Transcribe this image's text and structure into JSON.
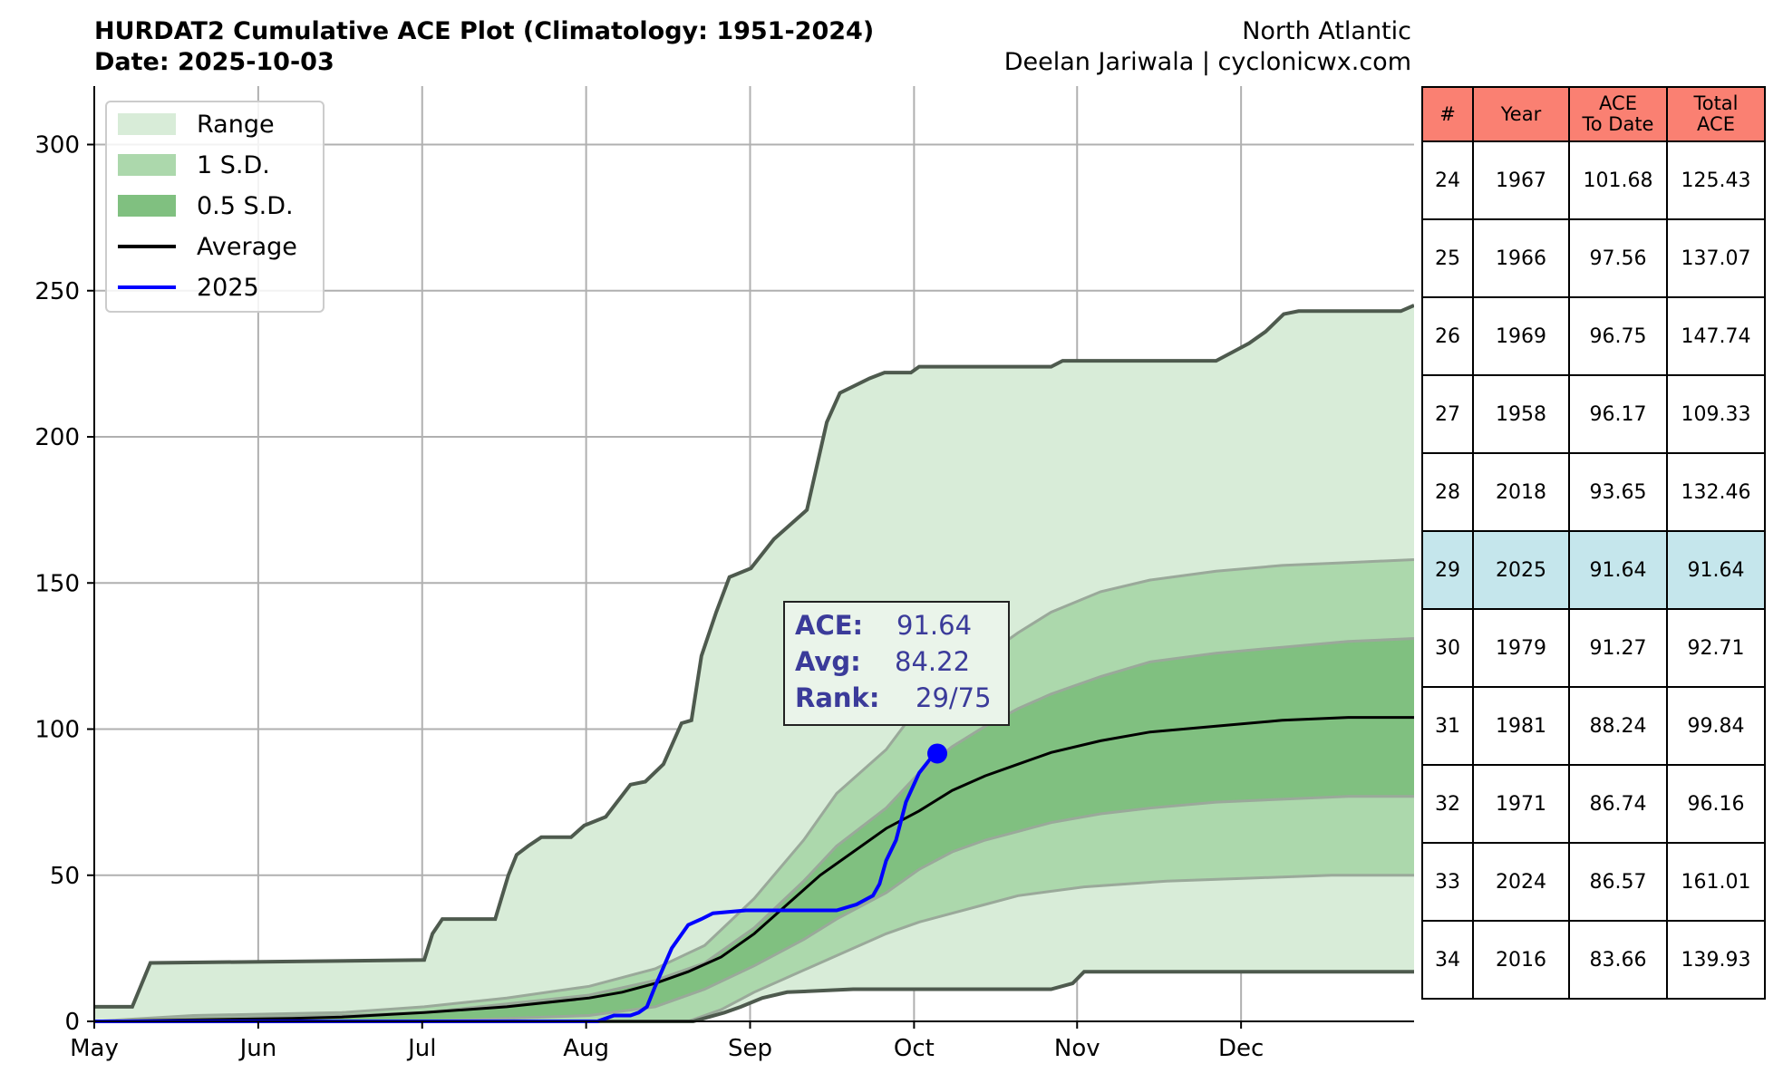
{
  "header": {
    "title": "HURDAT2 Cumulative ACE Plot (Climatology: 1951-2024)",
    "date": "Date: 2025-10-03",
    "basin": "North Atlantic",
    "credit": "Deelan Jariwala | cyclonicwx.com"
  },
  "colors": {
    "range": "#d8ecd8",
    "sd1": "#acd8ac",
    "sd05": "#80c080",
    "range_edge": "#4e5a4e",
    "sd_edge": "#9aa99a",
    "average": "#000000",
    "current": "#0000ff",
    "annotation_text": "#3b3b9a",
    "table_header": "#fa8072",
    "table_highlight": "#c5e6ec"
  },
  "chart_data": {
    "type": "area",
    "ylim": [
      0,
      320
    ],
    "yticks": [
      0,
      50,
      100,
      150,
      200,
      250,
      300
    ],
    "x_labels": [
      "May",
      "Jun",
      "Jul",
      "Aug",
      "Sep",
      "Oct",
      "Nov",
      "Dec"
    ],
    "grid": true,
    "legend_position": "top-left",
    "legend": [
      "Range",
      "1 S.D.",
      "0.5 S.D.",
      "Average",
      "2025"
    ],
    "annotation": {
      "ace_label": "ACE:",
      "ace_value": "91.64",
      "avg_label": "Avg:",
      "avg_value": "84.22",
      "rank_label": "Rank:",
      "rank_value": "29/75"
    },
    "current_point": {
      "date": "2025-10-03",
      "value": 91.64
    },
    "series": {
      "range_max": [
        [
          0,
          5
        ],
        [
          23,
          5
        ],
        [
          34,
          20
        ],
        [
          200,
          21
        ],
        [
          205,
          30
        ],
        [
          211,
          35
        ],
        [
          243,
          35
        ],
        [
          251,
          50
        ],
        [
          256,
          57
        ],
        [
          263,
          60
        ],
        [
          271,
          63
        ],
        [
          289,
          63
        ],
        [
          297,
          67
        ],
        [
          310,
          70
        ],
        [
          325,
          81
        ],
        [
          334,
          82
        ],
        [
          345,
          88
        ],
        [
          356,
          102
        ],
        [
          362,
          103
        ],
        [
          368,
          125
        ],
        [
          377,
          140
        ],
        [
          385,
          152
        ],
        [
          398,
          155
        ],
        [
          412,
          165
        ],
        [
          432,
          175
        ],
        [
          444,
          205
        ],
        [
          452,
          215
        ],
        [
          470,
          220
        ],
        [
          479,
          222
        ],
        [
          495,
          222
        ],
        [
          500,
          224
        ],
        [
          580,
          224
        ],
        [
          587,
          226
        ],
        [
          680,
          226
        ],
        [
          690,
          229
        ],
        [
          700,
          232
        ],
        [
          710,
          236
        ],
        [
          721,
          242
        ],
        [
          730,
          243
        ],
        [
          792,
          243
        ],
        [
          800,
          245
        ]
      ],
      "range_min": [
        [
          0,
          0
        ],
        [
          363,
          0
        ],
        [
          382,
          3
        ],
        [
          392,
          5
        ],
        [
          405,
          8
        ],
        [
          420,
          10
        ],
        [
          460,
          11
        ],
        [
          580,
          11
        ],
        [
          593,
          13
        ],
        [
          600,
          17
        ],
        [
          800,
          17
        ]
      ],
      "sd1_upper": [
        [
          0,
          0
        ],
        [
          60,
          2
        ],
        [
          150,
          3
        ],
        [
          200,
          5
        ],
        [
          250,
          8
        ],
        [
          300,
          12
        ],
        [
          340,
          18
        ],
        [
          370,
          26
        ],
        [
          400,
          42
        ],
        [
          430,
          62
        ],
        [
          450,
          78
        ],
        [
          480,
          93
        ],
        [
          500,
          108
        ],
        [
          520,
          117
        ],
        [
          540,
          125
        ],
        [
          560,
          133
        ],
        [
          580,
          140
        ],
        [
          610,
          147
        ],
        [
          640,
          151
        ],
        [
          680,
          154
        ],
        [
          720,
          156
        ],
        [
          760,
          157
        ],
        [
          800,
          158
        ]
      ],
      "sd1_lower": [
        [
          0,
          0
        ],
        [
          360,
          0
        ],
        [
          380,
          4
        ],
        [
          400,
          10
        ],
        [
          420,
          15
        ],
        [
          440,
          20
        ],
        [
          460,
          25
        ],
        [
          480,
          30
        ],
        [
          500,
          34
        ],
        [
          520,
          37
        ],
        [
          540,
          40
        ],
        [
          560,
          43
        ],
        [
          600,
          46
        ],
        [
          650,
          48
        ],
        [
          700,
          49
        ],
        [
          750,
          50
        ],
        [
          800,
          50
        ]
      ],
      "sd05_upper": [
        [
          0,
          0
        ],
        [
          60,
          1
        ],
        [
          150,
          2
        ],
        [
          200,
          3
        ],
        [
          250,
          6
        ],
        [
          300,
          9
        ],
        [
          340,
          14
        ],
        [
          370,
          20
        ],
        [
          400,
          32
        ],
        [
          430,
          48
        ],
        [
          450,
          60
        ],
        [
          480,
          73
        ],
        [
          500,
          85
        ],
        [
          520,
          94
        ],
        [
          540,
          101
        ],
        [
          560,
          107
        ],
        [
          580,
          112
        ],
        [
          610,
          118
        ],
        [
          640,
          123
        ],
        [
          680,
          126
        ],
        [
          720,
          128
        ],
        [
          760,
          130
        ],
        [
          800,
          131
        ]
      ],
      "sd05_lower": [
        [
          0,
          0
        ],
        [
          200,
          0
        ],
        [
          300,
          2
        ],
        [
          340,
          5
        ],
        [
          370,
          11
        ],
        [
          400,
          19
        ],
        [
          430,
          28
        ],
        [
          450,
          35
        ],
        [
          480,
          44
        ],
        [
          500,
          52
        ],
        [
          520,
          58
        ],
        [
          540,
          62
        ],
        [
          560,
          65
        ],
        [
          580,
          68
        ],
        [
          610,
          71
        ],
        [
          640,
          73
        ],
        [
          680,
          75
        ],
        [
          720,
          76
        ],
        [
          760,
          77
        ],
        [
          800,
          77
        ]
      ],
      "average": [
        [
          0,
          0
        ],
        [
          60,
          0.5
        ],
        [
          120,
          1
        ],
        [
          150,
          1.5
        ],
        [
          200,
          3
        ],
        [
          250,
          5
        ],
        [
          300,
          8
        ],
        [
          320,
          10
        ],
        [
          340,
          13
        ],
        [
          360,
          17
        ],
        [
          380,
          22
        ],
        [
          400,
          30
        ],
        [
          420,
          40
        ],
        [
          440,
          50
        ],
        [
          460,
          58
        ],
        [
          480,
          66
        ],
        [
          500,
          72
        ],
        [
          520,
          79
        ],
        [
          540,
          84
        ],
        [
          560,
          88
        ],
        [
          580,
          92
        ],
        [
          610,
          96
        ],
        [
          640,
          99
        ],
        [
          680,
          101
        ],
        [
          720,
          103
        ],
        [
          760,
          104
        ],
        [
          800,
          104
        ]
      ],
      "current": [
        [
          0,
          0
        ],
        [
          305,
          0
        ],
        [
          315,
          2
        ],
        [
          325,
          2
        ],
        [
          330,
          3
        ],
        [
          335,
          5
        ],
        [
          340,
          12
        ],
        [
          350,
          25
        ],
        [
          360,
          33
        ],
        [
          368,
          35
        ],
        [
          375,
          37
        ],
        [
          395,
          38
        ],
        [
          430,
          38
        ],
        [
          450,
          38
        ],
        [
          462,
          40
        ],
        [
          472,
          43
        ],
        [
          476,
          47
        ],
        [
          480,
          55
        ],
        [
          486,
          62
        ],
        [
          492,
          75
        ],
        [
          500,
          85
        ],
        [
          507,
          90
        ],
        [
          511,
          91.64
        ]
      ]
    }
  },
  "table": {
    "headers": [
      "#",
      "Year",
      "ACE\nTo Date",
      "Total\nACE"
    ],
    "rows": [
      [
        "24",
        "1967",
        "101.68",
        "125.43"
      ],
      [
        "25",
        "1966",
        "97.56",
        "137.07"
      ],
      [
        "26",
        "1969",
        "96.75",
        "147.74"
      ],
      [
        "27",
        "1958",
        "96.17",
        "109.33"
      ],
      [
        "28",
        "2018",
        "93.65",
        "132.46"
      ],
      [
        "29",
        "2025",
        "91.64",
        "91.64"
      ],
      [
        "30",
        "1979",
        "91.27",
        "92.71"
      ],
      [
        "31",
        "1981",
        "88.24",
        "99.84"
      ],
      [
        "32",
        "1971",
        "86.74",
        "96.16"
      ],
      [
        "33",
        "2024",
        "86.57",
        "161.01"
      ],
      [
        "34",
        "2016",
        "83.66",
        "139.93"
      ]
    ],
    "highlight_row": 5
  }
}
